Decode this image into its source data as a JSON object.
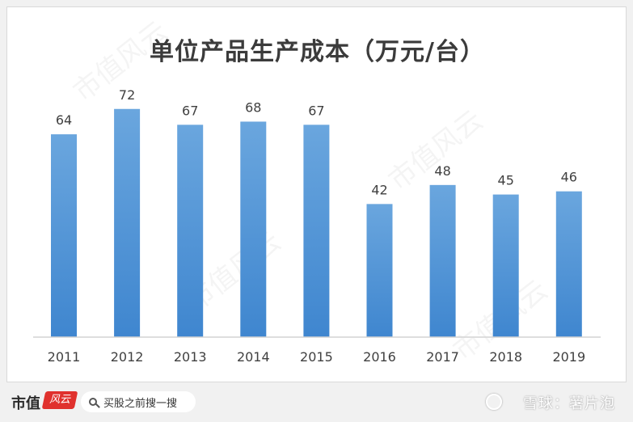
{
  "chart_data": {
    "type": "bar",
    "title": "单位产品生产成本（万元/台）",
    "categories": [
      "2011",
      "2012",
      "2013",
      "2014",
      "2015",
      "2016",
      "2017",
      "2018",
      "2019"
    ],
    "values": [
      64,
      72,
      67,
      68,
      67,
      42,
      48,
      45,
      46
    ],
    "ylim": [
      0,
      80
    ],
    "grid": false,
    "legend": "none",
    "bar_color": "#5b9bd5"
  },
  "watermark_text": "市值风云",
  "footer": {
    "brand": "市值",
    "brand_mark": "风云",
    "search_placeholder": "买股之前搜一搜",
    "platform": "雪球：薯片泡"
  }
}
